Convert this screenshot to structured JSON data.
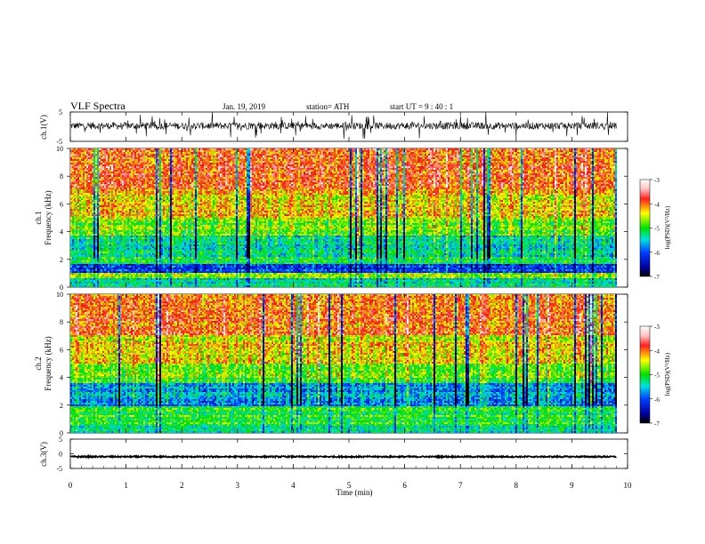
{
  "header": {
    "title": "VLF  Spectra",
    "date": "Jan. 19, 2019",
    "station": "station= ATH",
    "start_ut": "start  UT  =   9  : 40 : 1"
  },
  "colorbar_label": "log(PSD)(V²/Hz)",
  "chart_data": [
    {
      "type": "line",
      "panel": "ch1-waveform",
      "ylabel": "ch.1(V)",
      "ylim": [
        -5,
        5
      ],
      "yticks": [
        5,
        -5
      ],
      "xlim": [
        0,
        10
      ],
      "x_range_data": [
        0,
        9.8
      ],
      "series": [
        {
          "values_summary": "noisy waveform, mean ~0.3 V, spikes to ~±4 V"
        }
      ],
      "color": "#000000"
    },
    {
      "type": "heatmap",
      "panel": "ch1-spectrogram",
      "ylabel": "ch.1\nFrequency (kHz)",
      "ylabel_line1": "ch.1",
      "ylabel_line2": "Frequency (kHz)",
      "ylim": [
        0,
        10
      ],
      "yticks": [
        0,
        2,
        4,
        6,
        8,
        10
      ],
      "xlim": [
        0,
        10
      ],
      "x_range_data": [
        0,
        9.8
      ],
      "frequency_bands_kHz": [
        {
          "range": [
            0.0,
            0.7
          ],
          "level": -5.3
        },
        {
          "range": [
            0.7,
            1.0
          ],
          "level": -4.6
        },
        {
          "range": [
            1.0,
            1.7
          ],
          "level": -6.0
        },
        {
          "range": [
            1.7,
            2.2
          ],
          "level": -5.2
        },
        {
          "range": [
            2.2,
            3.7
          ],
          "level": -5.3
        },
        {
          "range": [
            3.7,
            5.0
          ],
          "level": -4.8
        },
        {
          "range": [
            5.0,
            7.0
          ],
          "level": -4.3
        },
        {
          "range": [
            7.0,
            10.0
          ],
          "level": -3.9
        }
      ],
      "colorbar": {
        "range": [
          -7,
          -3
        ],
        "ticks": [
          -3,
          -4,
          -5,
          -6,
          -7
        ]
      }
    },
    {
      "type": "heatmap",
      "panel": "ch2-spectrogram",
      "ylabel_line1": "ch.2",
      "ylabel_line2": "Frequency (kHz)",
      "ylim": [
        0,
        10
      ],
      "yticks": [
        0,
        2,
        4,
        6,
        8,
        10
      ],
      "xlim": [
        0,
        10
      ],
      "x_range_data": [
        0,
        9.8
      ],
      "frequency_bands_kHz": [
        {
          "range": [
            0.0,
            0.6
          ],
          "level": -5.3
        },
        {
          "range": [
            0.6,
            1.9
          ],
          "level": -5.0
        },
        {
          "range": [
            1.9,
            3.6
          ],
          "level": -5.7
        },
        {
          "range": [
            3.6,
            5.0
          ],
          "level": -4.9
        },
        {
          "range": [
            5.0,
            7.0
          ],
          "level": -4.4
        },
        {
          "range": [
            7.0,
            10.0
          ],
          "level": -4.0
        }
      ],
      "colorbar": {
        "range": [
          -7,
          -3
        ],
        "ticks": [
          -3,
          -4,
          -5,
          -6,
          -7
        ]
      }
    },
    {
      "type": "line",
      "panel": "ch3-waveform",
      "ylabel": "ch.3(V)",
      "ylim": [
        -5,
        5
      ],
      "yticks": [
        5,
        0,
        -5
      ],
      "ytick_labels": [
        "5",
        "0",
        "-5"
      ],
      "xlim": [
        0,
        10
      ],
      "x_range_data": [
        0,
        9.8
      ],
      "series": [
        {
          "values_summary": "nearly flat at ~-1 V"
        }
      ],
      "color": "#000000"
    }
  ],
  "x_axis": {
    "label": "Time  (min)",
    "ticks": [
      0,
      1,
      2,
      3,
      4,
      5,
      6,
      7,
      8,
      9,
      10
    ],
    "tick_labels": [
      "0",
      "1",
      "2",
      "3",
      "4",
      "5",
      "6",
      "7",
      "8",
      "9",
      "10"
    ]
  },
  "colorbar_ticks": [
    "-3",
    "-4",
    "-5",
    "-6",
    "-7"
  ]
}
